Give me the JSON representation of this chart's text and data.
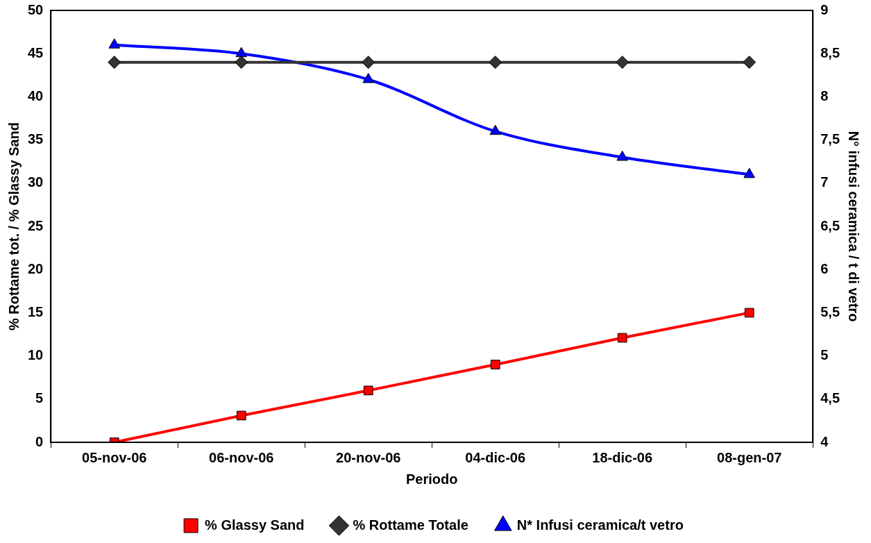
{
  "chart_data": {
    "type": "line",
    "xlabel": "Periodo",
    "ylabel": "% Rottame tot. / % Glassy Sand",
    "y2label": "N° infusi ceramica / t di vetro",
    "categories": [
      "05-nov-06",
      "06-nov-06",
      "20-nov-06",
      "04-dic-06",
      "18-dic-06",
      "08-gen-07"
    ],
    "series": [
      {
        "name": "% Glassy Sand",
        "color": "#ff0000",
        "marker": "square",
        "values": [
          0,
          3.1,
          6,
          9,
          12.1,
          15
        ]
      },
      {
        "name": "% Rottame Totale",
        "color": "#333333",
        "marker": "diamond",
        "values": [
          44,
          44,
          44,
          44,
          44,
          44
        ]
      },
      {
        "name": "N* Infusi ceramica/t vetro",
        "color": "#0000ff",
        "marker": "triangle",
        "axis": "y2",
        "values": [
          8.6,
          8.5,
          8.2,
          7.6,
          7.3,
          7.1
        ]
      }
    ],
    "ylim": [
      0,
      50
    ],
    "yticks": [
      0,
      5,
      10,
      15,
      20,
      25,
      30,
      35,
      40,
      45,
      50
    ],
    "y2lim": [
      4,
      9
    ],
    "y2ticks": [
      4,
      {
        "value": 4.5,
        "label": "4,5"
      },
      5,
      {
        "value": 5.5,
        "label": "5,5"
      },
      6,
      {
        "value": 6.5,
        "label": "6,5"
      },
      7,
      {
        "value": 7.5,
        "label": "7,5"
      },
      8,
      {
        "value": 8.5,
        "label": "8,5"
      },
      9
    ],
    "grid": false,
    "legend": "bottom"
  }
}
